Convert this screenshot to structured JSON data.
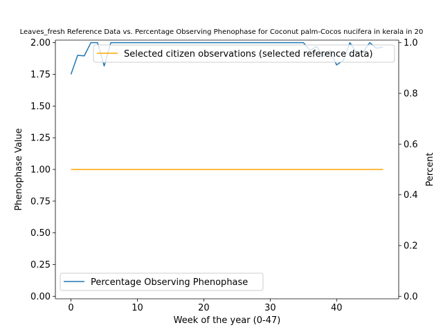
{
  "chart_data": {
    "type": "line",
    "title": "Leaves_fresh Reference Data vs. Percentage Observing Phenophase for Coconut palm-Cocos nucifera in kerala in 20",
    "xlabel": "Week of the year (0-47)",
    "ylabel_left": "Phenophase Value",
    "ylabel_right": "Percent",
    "xlim": [
      -2.35,
      49.35
    ],
    "ylim_left": [
      -0.02,
      2.02
    ],
    "ylim_right": [
      -0.01,
      1.01
    ],
    "x_ticks": [
      0,
      10,
      20,
      30,
      40
    ],
    "x_tick_labels": [
      "0",
      "10",
      "20",
      "30",
      "40"
    ],
    "y_left_ticks": [
      0.0,
      0.25,
      0.5,
      0.75,
      1.0,
      1.25,
      1.5,
      1.75,
      2.0
    ],
    "y_left_tick_labels": [
      "0.00",
      "0.25",
      "0.50",
      "0.75",
      "1.00",
      "1.25",
      "1.50",
      "1.75",
      "2.00"
    ],
    "y_right_ticks": [
      0.0,
      0.2,
      0.4,
      0.6,
      0.8,
      1.0
    ],
    "y_right_tick_labels": [
      "0.0",
      "0.2",
      "0.4",
      "0.6",
      "0.8",
      "1.0"
    ],
    "grid": false,
    "series": [
      {
        "name": "Selected citizen observations (selected reference data)",
        "axis": "left",
        "color": "#ffa500",
        "x": [
          0,
          47
        ],
        "values": [
          1.0,
          1.0
        ]
      },
      {
        "name": "Percentage Observing Phenophase",
        "axis": "right",
        "color": "#1f77b4",
        "x": [
          0,
          1,
          2,
          3,
          4,
          5,
          6,
          7,
          8,
          9,
          10,
          11,
          12,
          13,
          14,
          15,
          16,
          17,
          18,
          19,
          20,
          21,
          22,
          23,
          24,
          25,
          26,
          27,
          28,
          29,
          30,
          31,
          32,
          33,
          34,
          35,
          36,
          37,
          38,
          39,
          40,
          41,
          42,
          43,
          44,
          45,
          46,
          47
        ],
        "values": [
          0.875,
          0.95,
          0.948,
          1.0,
          1.0,
          0.908,
          1.0,
          1.0,
          1.0,
          1.0,
          1.0,
          1.0,
          1.0,
          1.0,
          1.0,
          1.0,
          1.0,
          1.0,
          1.0,
          1.0,
          1.0,
          1.0,
          1.0,
          1.0,
          1.0,
          1.0,
          1.0,
          1.0,
          1.0,
          1.0,
          1.0,
          1.0,
          1.0,
          1.0,
          1.0,
          1.0,
          0.97,
          0.985,
          0.945,
          0.97,
          0.912,
          0.93,
          1.0,
          0.96,
          0.965,
          1.0,
          0.978,
          0.983
        ]
      }
    ],
    "legends": [
      {
        "placement": "upper right",
        "entries": [
          "Selected citizen observations (selected reference data)"
        ]
      },
      {
        "placement": "lower left",
        "entries": [
          "Percentage Observing Phenophase"
        ]
      }
    ]
  }
}
